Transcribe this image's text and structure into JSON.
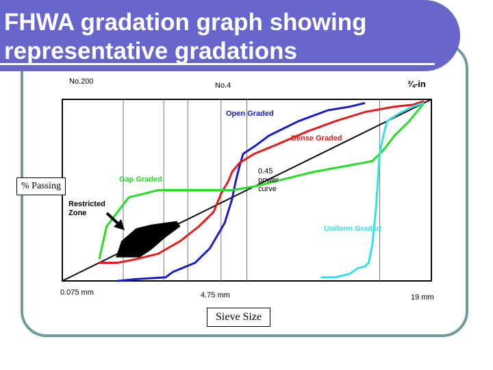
{
  "slide": {
    "title_line1": "FHWA gradation graph showing",
    "title_line2": "representative gradations",
    "colors": {
      "title_bg": "#6666cc",
      "frame": "#6f9a99"
    }
  },
  "chart_data": {
    "type": "line",
    "title": "",
    "xlabel": "Sieve Size",
    "ylabel": "% Passing",
    "x_scale": "power 0.45 (sieve size)",
    "top_tick_labels": [
      "No.200",
      "No.4",
      "¾-in"
    ],
    "bottom_tick_labels": [
      "0.075 mm",
      "4.75 mm",
      "19 mm"
    ],
    "grid": "vertical lines at intermediate sieves",
    "annotations": {
      "restricted_zone": "Restricted\nZone",
      "power_curve": "0.45\npower\ncurve"
    },
    "series": [
      {
        "name": "Open Graded",
        "color": "#1a1acc",
        "x": [
          0.15,
          0.2,
          0.28,
          0.3,
          0.36,
          0.4,
          0.44,
          0.46,
          0.47,
          0.48,
          0.49,
          0.52,
          0.54,
          0.56,
          0.6,
          0.64,
          0.68,
          0.72,
          0.78,
          0.82
        ],
        "y": [
          0.0,
          0.01,
          0.02,
          0.05,
          0.1,
          0.18,
          0.32,
          0.45,
          0.55,
          0.63,
          0.7,
          0.74,
          0.77,
          0.8,
          0.84,
          0.88,
          0.91,
          0.94,
          0.96,
          0.98
        ]
      },
      {
        "name": "Dense Graded",
        "color": "#e61a1a",
        "x": [
          0.1,
          0.15,
          0.2,
          0.26,
          0.32,
          0.37,
          0.41,
          0.43,
          0.45,
          0.46,
          0.48,
          0.52,
          0.58,
          0.66,
          0.74,
          0.82,
          0.9,
          0.95,
          0.98
        ],
        "y": [
          0.1,
          0.1,
          0.12,
          0.15,
          0.22,
          0.3,
          0.38,
          0.48,
          0.55,
          0.6,
          0.65,
          0.7,
          0.75,
          0.82,
          0.88,
          0.93,
          0.96,
          0.97,
          0.99
        ]
      },
      {
        "name": "Gap Graded",
        "color": "#22dd22",
        "x": [
          0.1,
          0.12,
          0.15,
          0.18,
          0.22,
          0.26,
          0.3,
          0.34,
          0.4,
          0.46,
          0.52,
          0.6,
          0.68,
          0.76,
          0.84,
          0.87,
          0.9,
          0.94,
          0.98
        ],
        "y": [
          0.12,
          0.3,
          0.38,
          0.46,
          0.48,
          0.5,
          0.5,
          0.5,
          0.5,
          0.5,
          0.52,
          0.56,
          0.6,
          0.63,
          0.66,
          0.72,
          0.8,
          0.88,
          0.98
        ]
      },
      {
        "name": "Uniform Graded",
        "color": "#33e0e8",
        "x": [
          0.7,
          0.74,
          0.78,
          0.8,
          0.82,
          0.83,
          0.84,
          0.85,
          0.86,
          0.87,
          0.88,
          0.91,
          0.95,
          0.98
        ],
        "y": [
          0.02,
          0.02,
          0.04,
          0.07,
          0.08,
          0.1,
          0.2,
          0.4,
          0.7,
          0.8,
          0.88,
          0.92,
          0.96,
          0.98
        ]
      }
    ],
    "power_line": {
      "name": "0.45 power curve",
      "x": [
        0,
        1
      ],
      "y": [
        0,
        1
      ]
    }
  }
}
